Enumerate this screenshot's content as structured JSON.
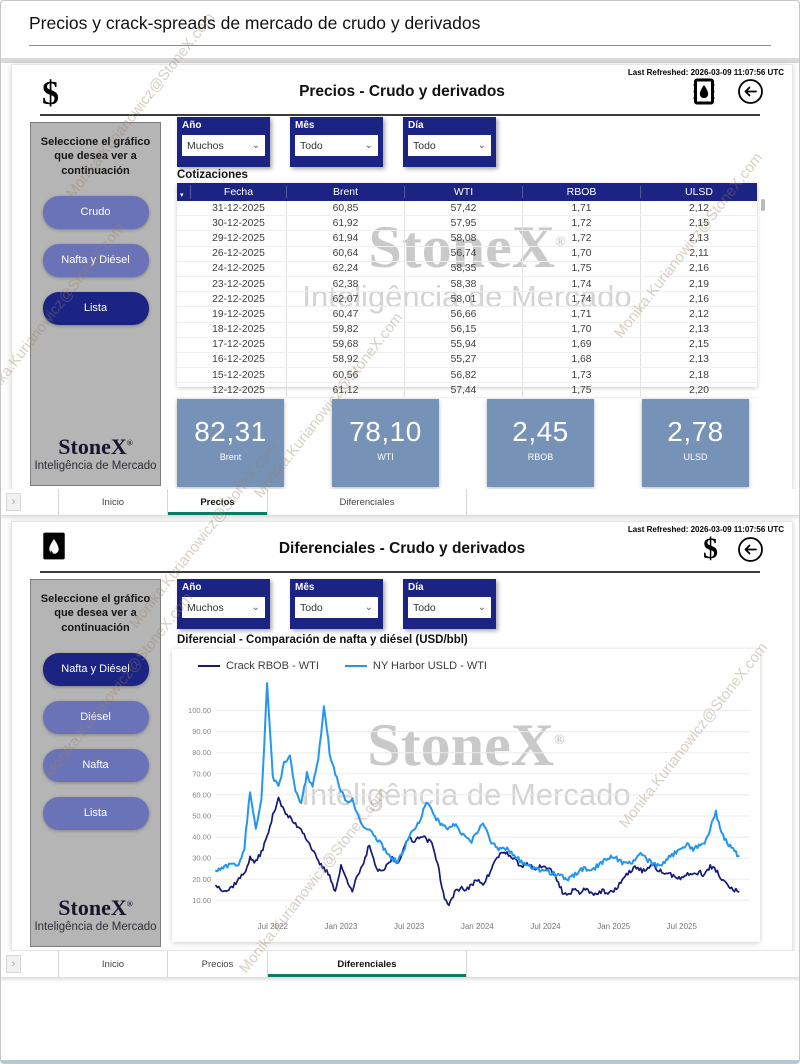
{
  "page": {
    "title": "Precios y crack-spreads de mercado de crudo y derivados"
  },
  "brand": {
    "name": "StoneX",
    "tagline": "Inteligência de Mercado"
  },
  "watermark": {
    "email": "Monika.Kurianowicz@StoneX.com"
  },
  "icons": {
    "dollar": "$",
    "back_arrow": "left-arrow-in-circle",
    "barrel": "oil-barrel",
    "tab_chevron": "›",
    "dropdown_chevron": "⌄",
    "sort_mark": "▾"
  },
  "colors": {
    "navy": "#1b2383",
    "button_purple": "#6b73b8",
    "sidebar_gray": "#b5b5b5",
    "kpi_blue": "#7792b7",
    "tab_teal": "#0b7b64",
    "line_navy": "#131a78",
    "line_blue": "#2496f0"
  },
  "panel_precios": {
    "last_refreshed": "Last Refreshed: 2026-03-09 11:07:56 UTC",
    "title": "Precios - Crudo y derivados",
    "sidebar": {
      "prompt": "Seleccione el gráfico que desea ver a continuación",
      "buttons": [
        {
          "label": "Crudo",
          "selected": false
        },
        {
          "label": "Nafta y Diésel",
          "selected": false
        },
        {
          "label": "Lista",
          "selected": true
        }
      ]
    },
    "filters": [
      {
        "label": "Año",
        "value": "Muchos"
      },
      {
        "label": "Mês",
        "value": "Todo"
      },
      {
        "label": "Día",
        "value": "Todo"
      }
    ],
    "table": {
      "title": "Cotizaciones",
      "columns": [
        "Fecha",
        "Brent",
        "WTI",
        "RBOB",
        "ULSD"
      ],
      "rows": [
        [
          "31-12-2025",
          "60,85",
          "57,42",
          "1,71",
          "2,12"
        ],
        [
          "30-12-2025",
          "61,92",
          "57,95",
          "1,72",
          "2,15"
        ],
        [
          "29-12-2025",
          "61,94",
          "58,08",
          "1,72",
          "2,13"
        ],
        [
          "26-12-2025",
          "60,64",
          "56,74",
          "1,70",
          "2,11"
        ],
        [
          "24-12-2025",
          "62,24",
          "58,35",
          "1,75",
          "2,16"
        ],
        [
          "23-12-2025",
          "62,38",
          "58,38",
          "1,74",
          "2,19"
        ],
        [
          "22-12-2025",
          "62,07",
          "58,01",
          "1,74",
          "2,16"
        ],
        [
          "19-12-2025",
          "60,47",
          "56,66",
          "1,71",
          "2,12"
        ],
        [
          "18-12-2025",
          "59,82",
          "56,15",
          "1,70",
          "2,13"
        ],
        [
          "17-12-2025",
          "59,68",
          "55,94",
          "1,69",
          "2,15"
        ],
        [
          "16-12-2025",
          "58,92",
          "55,27",
          "1,68",
          "2,13"
        ],
        [
          "15-12-2025",
          "60,56",
          "56,82",
          "1,73",
          "2,18"
        ],
        [
          "12-12-2025",
          "61,12",
          "57,44",
          "1,75",
          "2,20"
        ]
      ]
    },
    "kpis": [
      {
        "value": "82,31",
        "label": "Brent"
      },
      {
        "value": "78,10",
        "label": "WTI"
      },
      {
        "value": "2,45",
        "label": "RBOB"
      },
      {
        "value": "2,78",
        "label": "ULSD"
      }
    ]
  },
  "tabs_top": {
    "items": [
      {
        "label": "Inicio",
        "selected": false
      },
      {
        "label": "Precios",
        "selected": true
      },
      {
        "label": "Diferenciales",
        "selected": false
      }
    ]
  },
  "panel_diferenciales": {
    "last_refreshed": "Last Refreshed: 2026-03-09 11:07:56 UTC",
    "title": "Diferenciales - Crudo y derivados",
    "sidebar": {
      "prompt": "Seleccione el gráfico que desea ver a continuación",
      "buttons": [
        {
          "label": "Nafta y Diésel",
          "selected": true
        },
        {
          "label": "Diésel",
          "selected": false
        },
        {
          "label": "Nafta",
          "selected": false
        },
        {
          "label": "Lista",
          "selected": false
        }
      ]
    },
    "filters": [
      {
        "label": "Año",
        "value": "Muchos"
      },
      {
        "label": "Mês",
        "value": "Todo"
      },
      {
        "label": "Día",
        "value": "Todo"
      }
    ],
    "chart_title": "Diferencial - Comparación de nafta y diésel (USD/bbl)"
  },
  "tabs_bottom": {
    "items": [
      {
        "label": "Inicio",
        "selected": false
      },
      {
        "label": "Precios",
        "selected": false
      },
      {
        "label": "Diferenciales",
        "selected": true
      }
    ]
  },
  "chart_data": {
    "type": "line",
    "title": "Diferencial - Comparación de nafta y diésel (USD/bbl)",
    "legend_position": "top-left",
    "grid": true,
    "x_axis": {
      "unit": "months since 2022-02",
      "start": 0,
      "step": 0.5,
      "max": 47,
      "ticks": [
        {
          "pos": 5,
          "label": "Jul 2022"
        },
        {
          "pos": 11,
          "label": "Jan 2023"
        },
        {
          "pos": 17,
          "label": "Jul 2023"
        },
        {
          "pos": 23,
          "label": "Jan 2024"
        },
        {
          "pos": 29,
          "label": "Jul 2024"
        },
        {
          "pos": 35,
          "label": "Jan 2025"
        },
        {
          "pos": 41,
          "label": "Jul 2025"
        }
      ]
    },
    "y_axis": {
      "min": 4,
      "max": 114,
      "gridlines": [
        10,
        20,
        30,
        40,
        50,
        60,
        70,
        80,
        90,
        100
      ],
      "tick_format": "0.00"
    },
    "series": [
      {
        "name": "Crack RBOB - WTI",
        "color": "#131a78",
        "values": [
          17,
          15.5,
          14.5,
          17,
          20,
          23,
          30,
          28,
          33,
          40,
          50,
          59,
          52,
          49,
          46,
          44,
          39,
          34,
          28,
          25,
          22,
          14,
          26,
          20,
          15,
          22,
          27,
          37,
          26,
          23,
          26,
          30,
          28,
          34,
          40,
          38,
          41,
          39,
          37,
          28,
          13,
          7,
          14,
          16,
          15,
          17,
          20,
          18,
          22,
          28,
          32,
          33,
          30,
          28,
          26,
          27,
          25,
          26,
          26,
          24,
          20,
          14,
          12.5,
          15,
          14,
          15.5,
          14,
          13,
          14.5,
          13,
          14,
          18,
          21,
          24,
          26,
          24,
          25,
          26.5,
          24,
          23,
          22,
          21.5,
          20,
          23,
          22,
          23.5,
          22,
          26,
          24.5,
          20,
          17,
          15,
          14
        ]
      },
      {
        "name": "NY Harbor USLD - WTI",
        "color": "#2496f0",
        "values": [
          24,
          25,
          26.5,
          28,
          26,
          35,
          62,
          44,
          58,
          112,
          68,
          64,
          75,
          78,
          62,
          56,
          70,
          64,
          76,
          103,
          80,
          70,
          62,
          56,
          58,
          50,
          45,
          43,
          40,
          37,
          33,
          30,
          28,
          34,
          40,
          44,
          48,
          57,
          52,
          48,
          45,
          44,
          46,
          42,
          40,
          38,
          42,
          47,
          40,
          36,
          34,
          35,
          33,
          30,
          28,
          26,
          25,
          24,
          25,
          23,
          22,
          21,
          20,
          22,
          24,
          25,
          24,
          26,
          28,
          30,
          31,
          29,
          27,
          28,
          30,
          32,
          29,
          27,
          26,
          28,
          31,
          33,
          35,
          37,
          34,
          36,
          37,
          44,
          52,
          42,
          37,
          34,
          31
        ]
      }
    ]
  }
}
